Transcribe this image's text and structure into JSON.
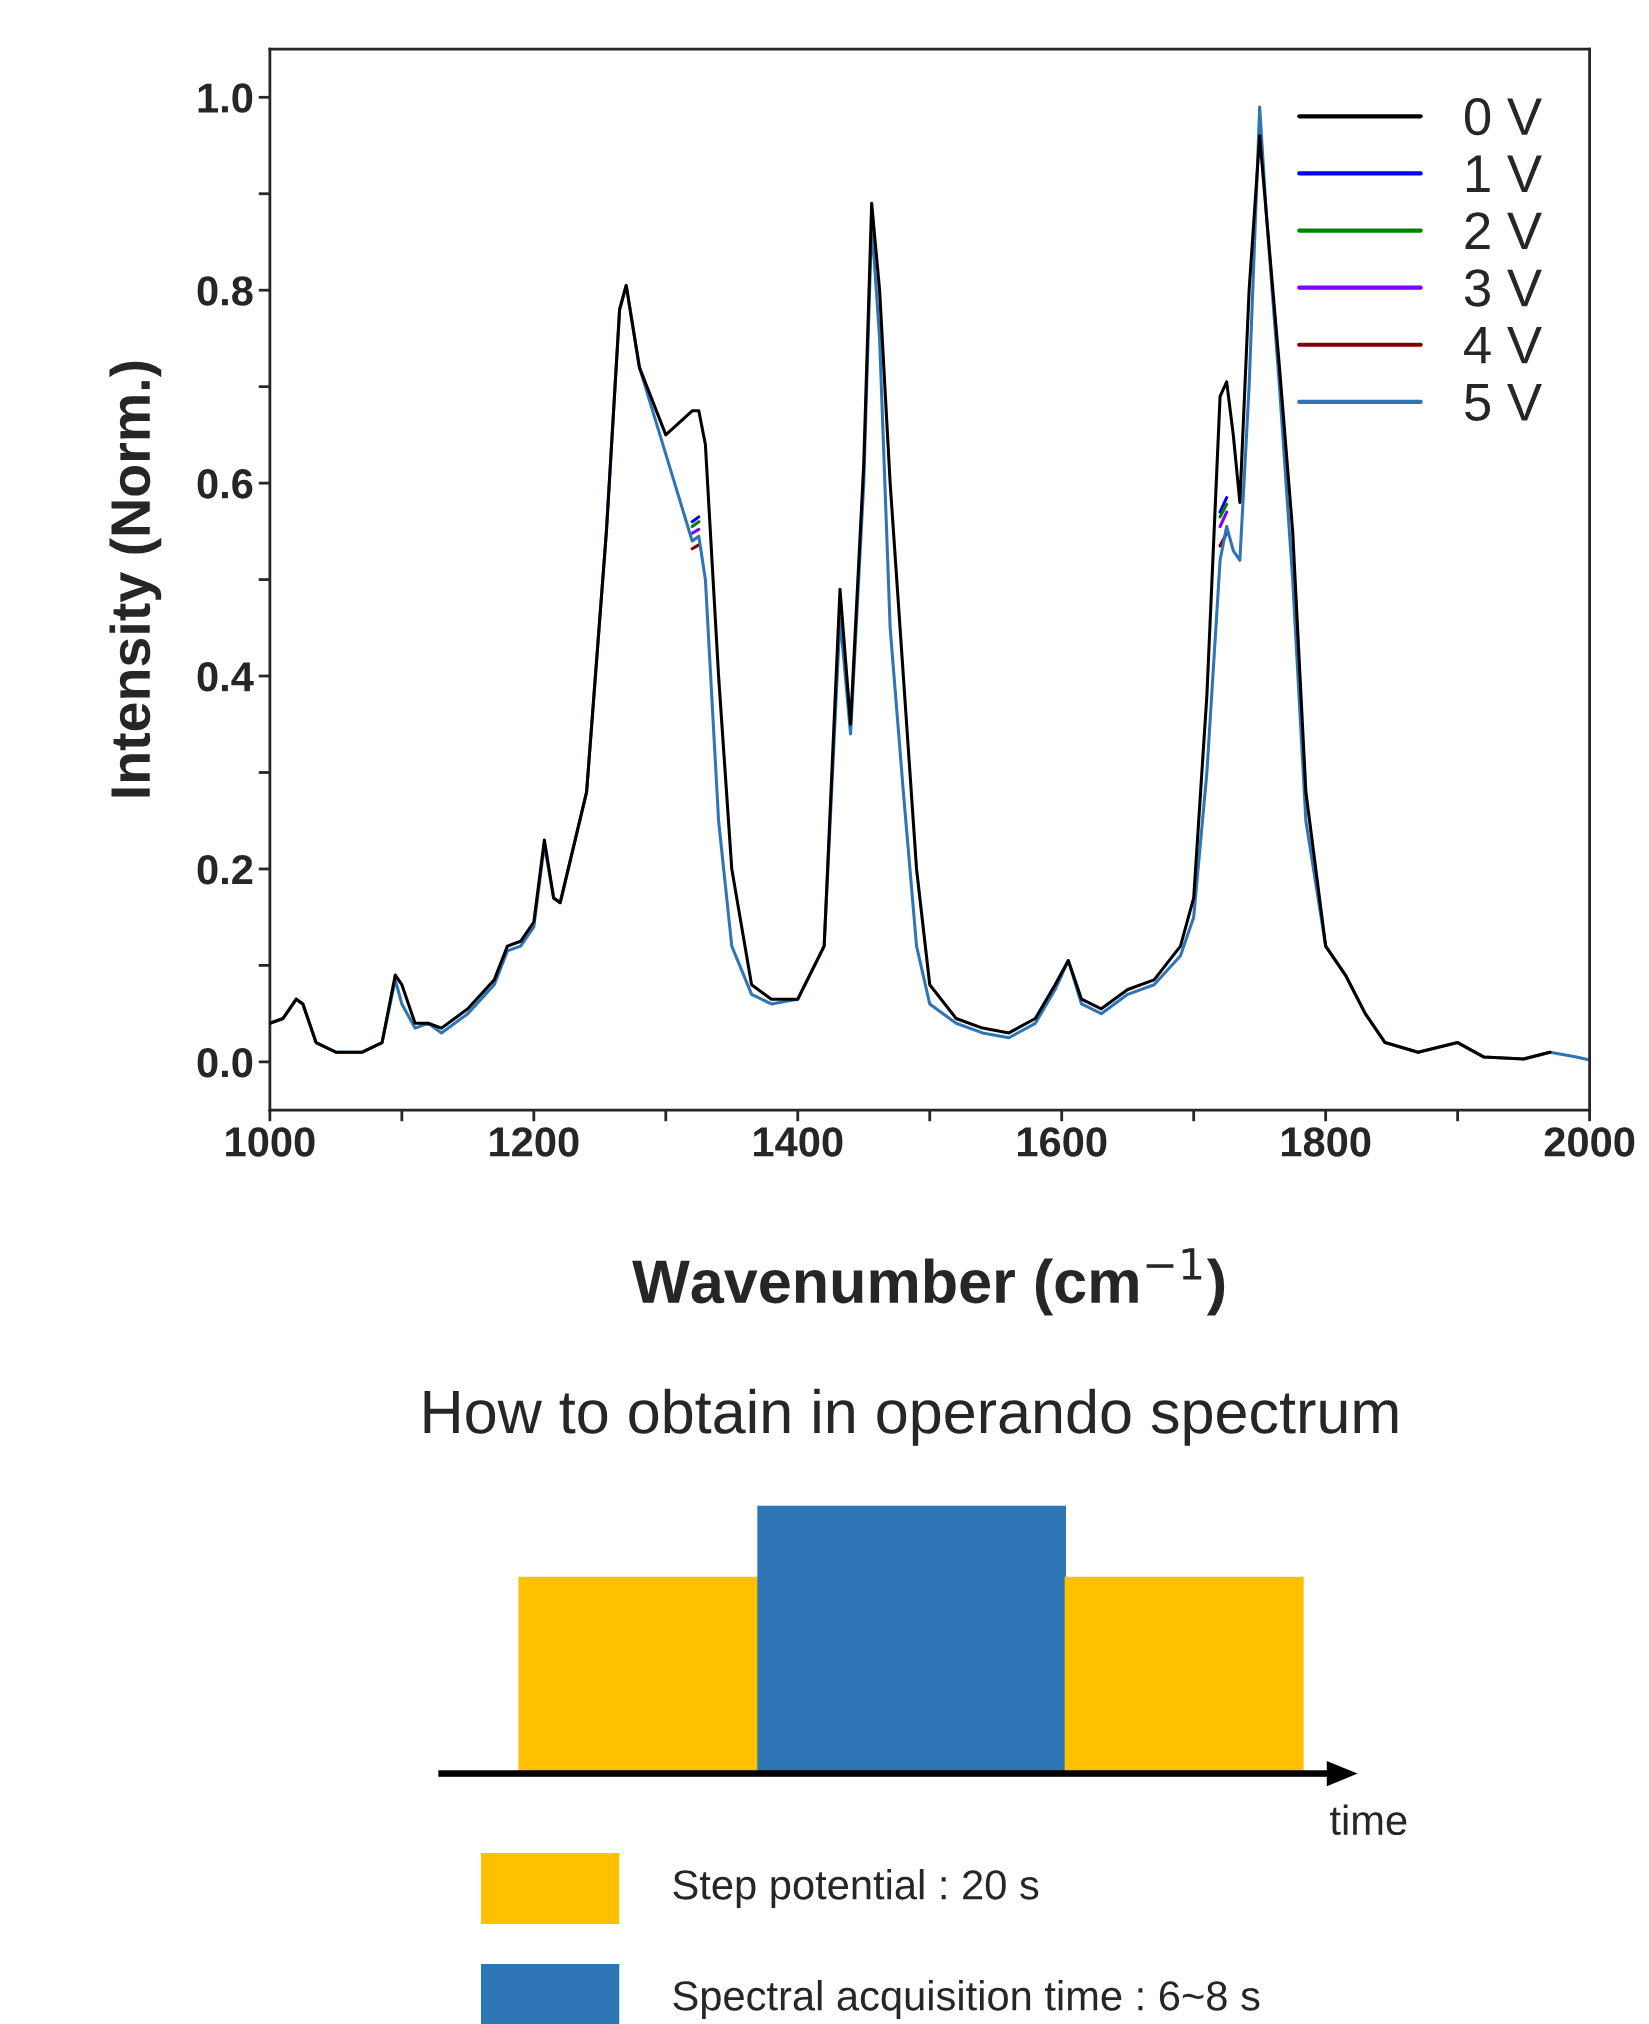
{
  "chart_data": [
    {
      "type": "line",
      "xlabel": "Wavenumber (cm$^{−1}$)",
      "ylabel": "Intensity (Norm.)",
      "x": [
        1000,
        1010,
        1020,
        1025,
        1035,
        1050,
        1070,
        1085,
        1095,
        1100,
        1110,
        1120,
        1130,
        1150,
        1170,
        1180,
        1190,
        1200,
        1208,
        1215,
        1220,
        1240,
        1255,
        1265,
        1270,
        1280,
        1300,
        1320,
        1325,
        1330,
        1340,
        1350,
        1365,
        1380,
        1400,
        1420,
        1432,
        1440,
        1450,
        1456,
        1462,
        1470,
        1480,
        1490,
        1500,
        1520,
        1540,
        1560,
        1580,
        1595,
        1605,
        1615,
        1630,
        1650,
        1670,
        1690,
        1700,
        1710,
        1720,
        1725,
        1730,
        1735,
        1742,
        1750,
        1755,
        1765,
        1775,
        1785,
        1800,
        1815,
        1830,
        1845,
        1870,
        1900,
        1920,
        1950,
        1970,
        1990,
        2000
      ],
      "series": [
        {
          "name": "0 V",
          "color": "#000000",
          "values": [
            0.04,
            0.045,
            0.065,
            0.06,
            0.02,
            0.01,
            0.01,
            0.02,
            0.09,
            0.08,
            0.04,
            0.04,
            0.035,
            0.055,
            0.085,
            0.12,
            0.125,
            0.145,
            0.23,
            0.17,
            0.165,
            0.28,
            0.55,
            0.78,
            0.805,
            0.72,
            0.65,
            0.675,
            0.675,
            0.64,
            0.4,
            0.2,
            0.08,
            0.065,
            0.065,
            0.12,
            0.49,
            0.35,
            0.62,
            0.89,
            0.8,
            0.6,
            0.4,
            0.2,
            0.08,
            0.045,
            0.035,
            0.03,
            0.045,
            0.08,
            0.105,
            0.065,
            0.055,
            0.075,
            0.085,
            0.12,
            0.17,
            0.38,
            0.69,
            0.705,
            0.65,
            0.58,
            0.8,
            0.96,
            0.88,
            0.72,
            0.55,
            0.28,
            0.12,
            0.09,
            0.05,
            0.02,
            0.01,
            0.02,
            0.005,
            0.003,
            0.01,
            null,
            null
          ]
        },
        {
          "name": "1 V",
          "color": "#0000ff",
          "values": [
            null,
            null,
            null,
            null,
            null,
            null,
            null,
            null,
            null,
            null,
            null,
            null,
            null,
            null,
            null,
            null,
            null,
            null,
            null,
            null,
            null,
            null,
            null,
            null,
            null,
            null,
            null,
            0.56,
            0.565,
            null,
            null,
            null,
            null,
            null,
            null,
            null,
            null,
            null,
            null,
            null,
            null,
            null,
            null,
            null,
            null,
            null,
            null,
            null,
            null,
            null,
            null,
            null,
            null,
            null,
            null,
            null,
            null,
            null,
            0.57,
            0.585,
            null,
            null,
            null,
            null,
            null,
            null,
            null,
            null,
            null,
            null,
            null,
            null,
            null,
            null,
            null,
            null,
            null,
            null,
            null
          ]
        },
        {
          "name": "2 V",
          "color": "#008000",
          "values": [
            null,
            null,
            null,
            null,
            null,
            null,
            null,
            null,
            null,
            null,
            null,
            null,
            null,
            null,
            null,
            null,
            null,
            null,
            null,
            null,
            null,
            null,
            null,
            null,
            null,
            null,
            null,
            0.555,
            0.56,
            null,
            null,
            null,
            null,
            null,
            null,
            null,
            null,
            null,
            null,
            null,
            null,
            null,
            null,
            null,
            null,
            null,
            null,
            null,
            null,
            null,
            null,
            null,
            null,
            null,
            null,
            null,
            null,
            null,
            0.565,
            0.578,
            null,
            null,
            null,
            null,
            null,
            null,
            null,
            null,
            null,
            null,
            null,
            null,
            null,
            null,
            null,
            null,
            null,
            null,
            null
          ]
        },
        {
          "name": "3 V",
          "color": "#8000ff",
          "values": [
            null,
            null,
            null,
            null,
            null,
            null,
            null,
            null,
            null,
            null,
            null,
            null,
            null,
            null,
            null,
            null,
            null,
            null,
            null,
            null,
            null,
            null,
            null,
            null,
            null,
            null,
            null,
            0.548,
            0.552,
            null,
            null,
            null,
            null,
            null,
            null,
            null,
            null,
            null,
            null,
            null,
            null,
            null,
            null,
            null,
            null,
            null,
            null,
            null,
            null,
            null,
            null,
            null,
            null,
            null,
            null,
            null,
            null,
            null,
            0.555,
            0.57,
            null,
            null,
            null,
            null,
            null,
            null,
            null,
            null,
            null,
            null,
            null,
            null,
            null,
            null,
            null,
            null,
            null,
            null,
            null
          ]
        },
        {
          "name": "4 V",
          "color": "#800000",
          "values": [
            null,
            null,
            null,
            null,
            null,
            null,
            null,
            null,
            null,
            null,
            null,
            null,
            null,
            null,
            null,
            null,
            null,
            null,
            null,
            null,
            null,
            null,
            null,
            null,
            null,
            null,
            null,
            0.532,
            0.536,
            null,
            null,
            null,
            null,
            null,
            null,
            null,
            null,
            null,
            null,
            null,
            null,
            null,
            null,
            null,
            null,
            null,
            null,
            null,
            null,
            null,
            null,
            null,
            null,
            null,
            null,
            null,
            null,
            null,
            0.535,
            0.548,
            null,
            null,
            null,
            null,
            null,
            null,
            null,
            null,
            null,
            null,
            null,
            null,
            null,
            null,
            null,
            null,
            null,
            null,
            null
          ]
        },
        {
          "name": "5 V",
          "color": "#2f75b5",
          "values": [
            0.04,
            0.045,
            0.065,
            0.06,
            0.02,
            0.01,
            0.01,
            0.02,
            0.085,
            0.06,
            0.035,
            0.04,
            0.03,
            0.05,
            0.08,
            0.115,
            0.12,
            0.14,
            0.225,
            0.17,
            0.165,
            0.28,
            0.55,
            0.78,
            0.805,
            0.72,
            0.63,
            0.54,
            0.545,
            0.5,
            0.25,
            0.12,
            0.07,
            0.06,
            0.065,
            0.12,
            0.46,
            0.34,
            0.6,
            0.87,
            0.75,
            0.45,
            0.28,
            0.12,
            0.06,
            0.04,
            0.03,
            0.025,
            0.04,
            0.075,
            0.105,
            0.06,
            0.05,
            0.07,
            0.08,
            0.11,
            0.15,
            0.3,
            0.52,
            0.555,
            0.53,
            0.52,
            0.7,
            0.99,
            0.88,
            0.7,
            0.5,
            0.25,
            0.12,
            0.09,
            0.05,
            0.02,
            0.01,
            0.02,
            0.005,
            0.003,
            0.01,
            0.005,
            0.002
          ]
        }
      ],
      "xlim": [
        1000,
        2000
      ],
      "xticks": [
        1000,
        {
          "value": 1100,
          "label": null
        },
        1200,
        {
          "value": 1300,
          "label": null
        },
        1400,
        {
          "value": 1500,
          "label": null
        },
        1600,
        {
          "value": 1700,
          "label": null
        },
        1800,
        {
          "value": 1900,
          "label": null
        },
        2000
      ],
      "ylim": [
        -0.05,
        1.05
      ],
      "yticks": [
        {
          "value": 0,
          "label": "0.0"
        },
        {
          "value": 0.1,
          "label": null
        },
        {
          "value": 0.2,
          "label": "0.2"
        },
        {
          "value": 0.3,
          "label": null
        },
        {
          "value": 0.4,
          "label": "0.4"
        },
        {
          "value": 0.5,
          "label": null
        },
        {
          "value": 0.6,
          "label": "0.6"
        },
        {
          "value": 0.7,
          "label": null
        },
        {
          "value": 0.8,
          "label": "0.8"
        },
        {
          "value": 0.9,
          "label": null
        },
        {
          "value": 1.0,
          "label": "1.0"
        }
      ],
      "legend": "top right",
      "grid": false
    },
    {
      "type": "other",
      "title": "How to obtain in operando spectrum",
      "annotations": [
        "time",
        "Step potential : 20 s",
        "Spectral acquisition time : 6~8 s"
      ]
    }
  ]
}
